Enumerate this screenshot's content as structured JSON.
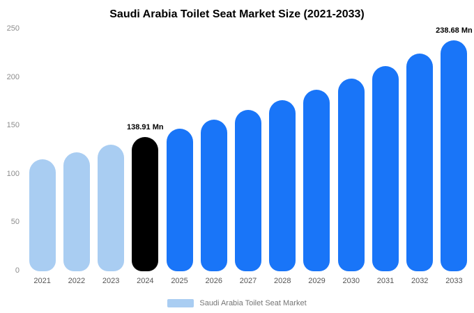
{
  "chart_data": {
    "type": "bar",
    "title": "Saudi Arabia Toilet Seat Market Size (2021-2033)",
    "categories": [
      "2021",
      "2022",
      "2023",
      "2024",
      "2025",
      "2026",
      "2027",
      "2028",
      "2029",
      "2030",
      "2031",
      "2032",
      "2033"
    ],
    "values": [
      116,
      123,
      131,
      138.91,
      147.5,
      156.7,
      166.4,
      176.7,
      187.7,
      199.3,
      211.7,
      224.8,
      238.68
    ],
    "unit": "Mn",
    "ylim": [
      0,
      250
    ],
    "yticks": [
      0,
      50,
      100,
      150,
      200,
      250
    ],
    "grid": "off",
    "legend_position": "bottom",
    "legend": [
      {
        "label": "Saudi Arabia Toilet Seat Market",
        "color": "#a9cdf2"
      }
    ],
    "annotations": [
      {
        "index": 3,
        "text": "138.91 Mn"
      },
      {
        "index": 12,
        "text": "238.68 Mn"
      }
    ],
    "bar_colors": [
      "#a9cdf2",
      "#a9cdf2",
      "#a9cdf2",
      "#000000",
      "#1975f8",
      "#1975f8",
      "#1975f8",
      "#1975f8",
      "#1975f8",
      "#1975f8",
      "#1975f8",
      "#1975f8",
      "#1975f8"
    ],
    "colors": {
      "historical": "#a9cdf2",
      "base_year": "#000000",
      "forecast": "#1975f8",
      "title_text": "#000000",
      "axis_text": "#8c8c8c"
    }
  }
}
